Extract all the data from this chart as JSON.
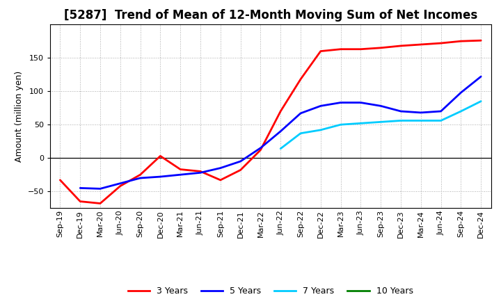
{
  "title": "[5287]  Trend of Mean of 12-Month Moving Sum of Net Incomes",
  "ylabel": "Amount (million yen)",
  "x_labels": [
    "Sep-19",
    "Dec-19",
    "Mar-20",
    "Jun-20",
    "Sep-20",
    "Dec-20",
    "Mar-21",
    "Jun-21",
    "Sep-21",
    "Dec-21",
    "Mar-22",
    "Jun-22",
    "Sep-22",
    "Dec-22",
    "Mar-23",
    "Jun-23",
    "Sep-23",
    "Dec-23",
    "Mar-24",
    "Jun-24",
    "Sep-24",
    "Dec-24"
  ],
  "ylim": [
    -75,
    200
  ],
  "yticks": [
    -50,
    0,
    50,
    100,
    150
  ],
  "y_3yr": [
    -33,
    -65,
    -68,
    -42,
    -25,
    3,
    -17,
    -20,
    -33,
    -18,
    12,
    70,
    118,
    160,
    163,
    163,
    165,
    168,
    170,
    172,
    175,
    176
  ],
  "y_5yr": [
    null,
    -45,
    -46,
    -38,
    -30,
    -28,
    -25,
    -22,
    -15,
    -5,
    15,
    40,
    67,
    78,
    83,
    83,
    78,
    70,
    68,
    70,
    98,
    122
  ],
  "y_7yr": [
    null,
    null,
    null,
    null,
    null,
    null,
    null,
    null,
    null,
    null,
    null,
    14,
    37,
    42,
    50,
    52,
    54,
    56,
    56,
    56,
    70,
    85
  ],
  "y_10yr": [
    null,
    null,
    null,
    null,
    null,
    null,
    null,
    null,
    null,
    null,
    null,
    null,
    null,
    null,
    null,
    null,
    null,
    null,
    null,
    null,
    null,
    null
  ],
  "color_3yr": "#FF0000",
  "color_5yr": "#0000FF",
  "color_7yr": "#00CCFF",
  "color_10yr": "#008000",
  "linewidth": 2.0,
  "title_fontsize": 12,
  "axis_fontsize": 9,
  "tick_fontsize": 8,
  "legend_fontsize": 9
}
